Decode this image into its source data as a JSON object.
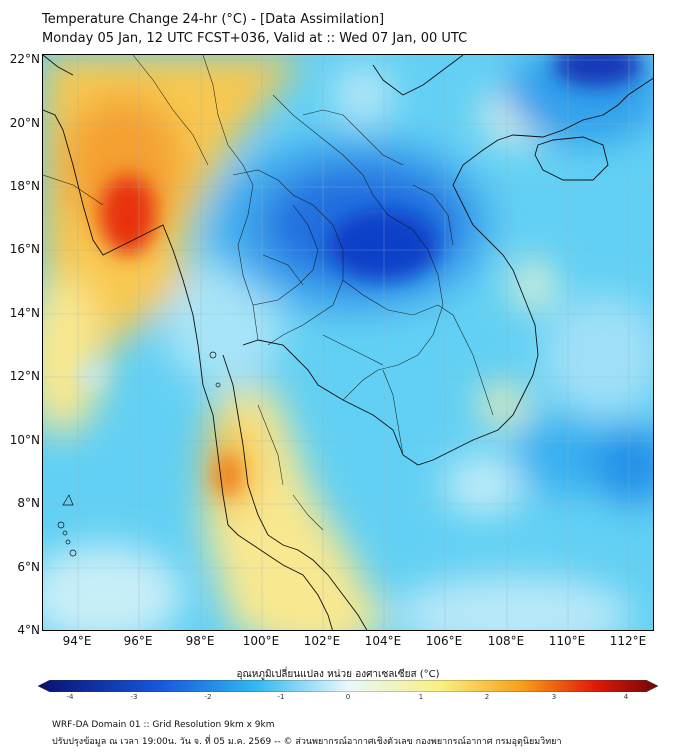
{
  "header": {
    "title_line1": "Temperature Change 24-hr (°C) - [Data Assimilation]",
    "title_line2": "Monday 05 Jan, 12 UTC FCST+036, Valid at :: Wed 07 Jan, 00 UTC"
  },
  "map": {
    "lat_labels": [
      "22°N",
      "20°N",
      "18°N",
      "16°N",
      "14°N",
      "12°N",
      "10°N",
      "8°N",
      "6°N",
      "4°N"
    ],
    "lon_labels": [
      "94°E",
      "96°E",
      "98°E",
      "100°E",
      "102°E",
      "104°E",
      "106°E",
      "108°E",
      "110°E",
      "112°E"
    ]
  },
  "colorbar": {
    "title": "อุณหภูมิเปลี่ยนแปลง หน่วย องศาเซลเซียส (°C)",
    "ticks": [
      "-4",
      "-3",
      "-2",
      "-1",
      "0",
      "1",
      "2",
      "3",
      "4"
    ],
    "colors": {
      "cold_end": "#08106e",
      "cold": "#1858e0",
      "cool": "#30b8f0",
      "neutral": "#e8f8fc",
      "warm": "#f8f080",
      "hot": "#f8a018",
      "very_hot": "#e01808",
      "hot_end": "#6e0808"
    }
  },
  "footer": {
    "line1": "WRF-DA Domain 01 :: Grid Resolution 9km x 9km",
    "line2": "ปรับปรุงข้อมูล ณ เวลา 19:00น. วัน จ. ที่ 05 ม.ค. 2569 -- © ส่วนพยากรณ์อากาศเชิงตัวเลข กองพยากรณ์อากาศ กรมอุตุนิยมวิทยา"
  }
}
